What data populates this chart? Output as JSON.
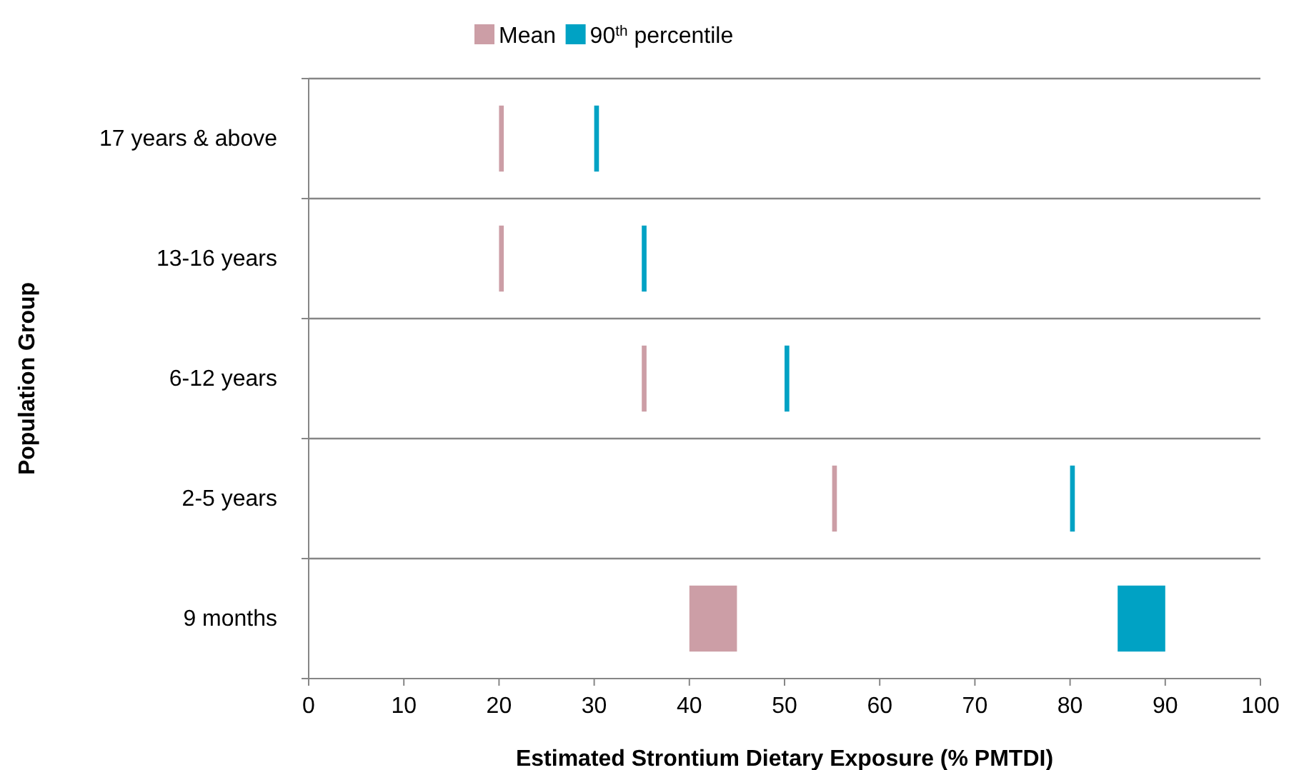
{
  "chart_data": {
    "type": "bar",
    "orientation": "horizontal",
    "xlabel": "Estimated Strontium Dietary Exposure (% PMTDI)",
    "ylabel": "Population Group",
    "categories": [
      "17 years & above",
      "13-16 years",
      "6-12 years",
      "2-5 years",
      "9 months"
    ],
    "series": [
      {
        "name": "Mean",
        "color": "#cc9ea6",
        "base": [
          20,
          20,
          35,
          55,
          40
        ],
        "values": [
          0.5,
          0.5,
          0.5,
          0.5,
          5
        ]
      },
      {
        "name": "90$^{th}$ percentile",
        "color": "#00a2c4",
        "base": [
          30,
          35,
          50,
          80,
          85
        ],
        "values": [
          0.5,
          0.5,
          0.5,
          0.5,
          5
        ]
      }
    ],
    "xlim": [
      0,
      100
    ],
    "xticks": [
      0,
      10,
      20,
      30,
      40,
      50,
      60,
      70,
      80,
      90,
      100
    ],
    "grid": "y",
    "legend": "top"
  }
}
